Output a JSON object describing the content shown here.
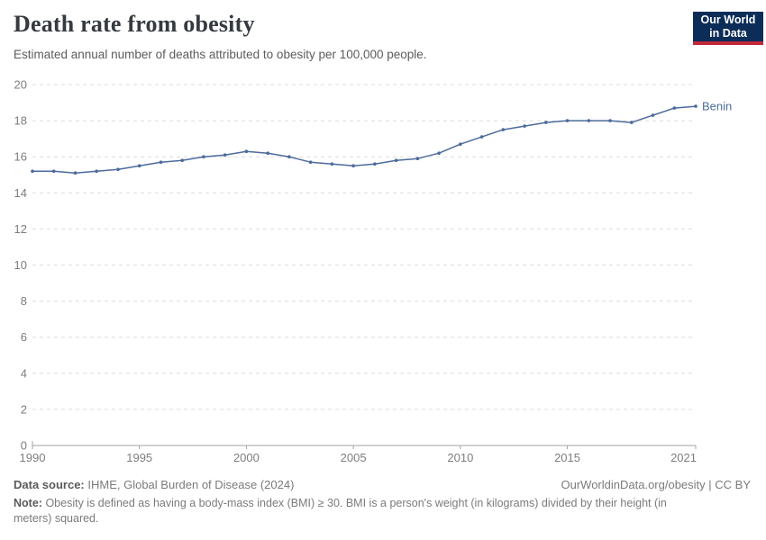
{
  "logo": {
    "line1": "Our World",
    "line2": "in Data",
    "bg_color": "#0c2d58",
    "accent_color": "#c2293a"
  },
  "chart_data": {
    "type": "line",
    "title": "Death rate from obesity",
    "subtitle": "Estimated annual number of deaths attributed to obesity per 100,000 people.",
    "xlabel": "",
    "ylabel": "",
    "xlim": [
      1990,
      2021
    ],
    "ylim": [
      0,
      20
    ],
    "xticks": [
      1990,
      1995,
      2000,
      2005,
      2010,
      2015,
      2021
    ],
    "yticks": [
      0,
      2,
      4,
      6,
      8,
      10,
      12,
      14,
      16,
      18,
      20
    ],
    "grid": "horizontal-dashed",
    "legend_position": "end-of-line-label",
    "colors": {
      "line": "#4C6A9C",
      "axis_text": "#7d7d7d",
      "gridline": "#dcdcdc",
      "axis_line": "#a3a3a3"
    },
    "series": [
      {
        "name": "Benin",
        "color": "#4C6A9C",
        "x": [
          1990,
          1991,
          1992,
          1993,
          1994,
          1995,
          1996,
          1997,
          1998,
          1999,
          2000,
          2001,
          2002,
          2003,
          2004,
          2005,
          2006,
          2007,
          2008,
          2009,
          2010,
          2011,
          2012,
          2013,
          2014,
          2015,
          2016,
          2017,
          2018,
          2019,
          2020,
          2021
        ],
        "values": [
          15.2,
          15.2,
          15.1,
          15.2,
          15.3,
          15.5,
          15.7,
          15.8,
          16.0,
          16.1,
          16.3,
          16.2,
          16.0,
          15.7,
          15.6,
          15.5,
          15.6,
          15.8,
          15.9,
          16.2,
          16.7,
          17.1,
          17.5,
          17.7,
          17.9,
          18.0,
          18.0,
          18.0,
          17.9,
          18.3,
          18.7,
          18.8
        ]
      }
    ]
  },
  "footer": {
    "data_source_label": "Data source:",
    "data_source_value": "IHME, Global Burden of Disease (2024)",
    "attribution": "OurWorldinData.org/obesity | CC BY",
    "note_label": "Note:",
    "note_text": "Obesity is defined as having a body-mass index (BMI) ≥ 30. BMI is a person's weight (in kilograms) divided by their height (in meters) squared."
  }
}
